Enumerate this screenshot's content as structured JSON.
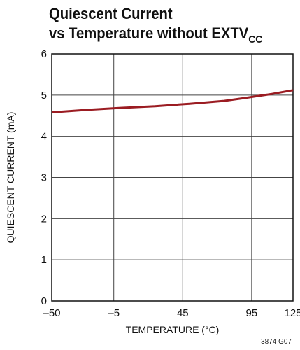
{
  "chart_data": {
    "type": "line",
    "title_line1": "Quiescent Current",
    "title_line2_main": "vs Temperature without EXTV",
    "title_line2_sub": "CC",
    "xlabel": "TEMPERATURE (°C)",
    "ylabel": "QUIESCENT CURRENT (mA)",
    "xlim": [
      -50,
      125
    ],
    "ylim": [
      0,
      6
    ],
    "x_tick_labels": [
      "–50",
      "–5",
      "45",
      "95",
      "125"
    ],
    "x_tick_values": [
      -50,
      -5,
      45,
      95,
      125
    ],
    "y_tick_values": [
      0,
      1,
      2,
      3,
      4,
      5,
      6
    ],
    "y_tick_labels": [
      "0",
      "1",
      "2",
      "3",
      "4",
      "5",
      "6"
    ],
    "grid": true,
    "series": [
      {
        "color": "#9b1c22",
        "x": [
          -50,
          -25,
          0,
          25,
          50,
          75,
          90,
          100,
          110,
          125
        ],
        "y": [
          4.58,
          4.64,
          4.69,
          4.73,
          4.79,
          4.86,
          4.93,
          4.98,
          5.03,
          5.12
        ]
      }
    ],
    "figure_id": "3874 G07"
  }
}
